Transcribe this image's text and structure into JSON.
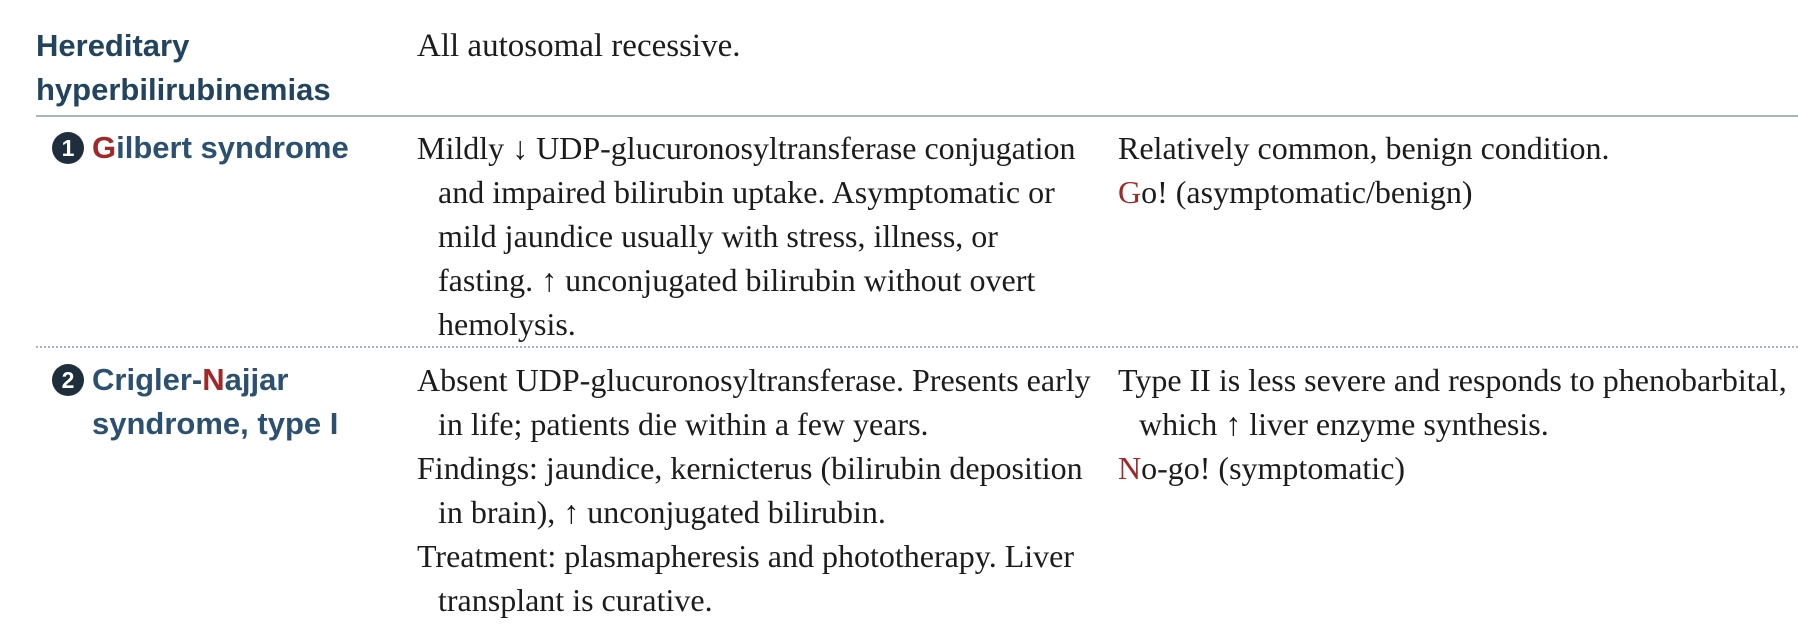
{
  "section": {
    "title": "Hereditary hyperbilirubinemias",
    "intro": "All autosomal recessive."
  },
  "colors": {
    "heading": "#22445e",
    "label": "#2c5170",
    "accent": "#a02828",
    "rule": "#a9b4bc",
    "bullet": "#1e2e3c"
  },
  "rows": [
    {
      "number": "1",
      "number_icon": "circled-number-one-icon",
      "name_accent": "G",
      "name_rest": "ilbert syndrome",
      "description": [
        "Mildly ↓ UDP-glucuronosyltransferase conjugation and impaired bilirubin uptake. Asymptomatic or mild jaundice usually with stress, illness, or fasting. ↑ unconjugated bilirubin without overt hemolysis."
      ],
      "notes": [
        {
          "accent": "",
          "text": "Relatively common, benign condition."
        },
        {
          "accent": "G",
          "text": "o! (asymptomatic/benign)"
        }
      ]
    },
    {
      "number": "2",
      "number_icon": "circled-number-two-icon",
      "name_pre": "Crigler-",
      "name_accent": "N",
      "name_post": "ajjar syndrome, type I",
      "description": [
        "Absent UDP-glucuronosyltransferase. Presents early in life; patients die within a few years.",
        "Findings: jaundice, kernicterus (bilirubin deposition in brain), ↑ unconjugated bilirubin.",
        "Treatment: plasmapheresis and phototherapy. Liver transplant is curative."
      ],
      "notes": [
        {
          "accent": "",
          "text": "Type II is less severe and responds to phenobarbital, which ↑ liver enzyme synthesis."
        },
        {
          "accent": "N",
          "text": "o-go! (symptomatic)"
        }
      ]
    }
  ]
}
